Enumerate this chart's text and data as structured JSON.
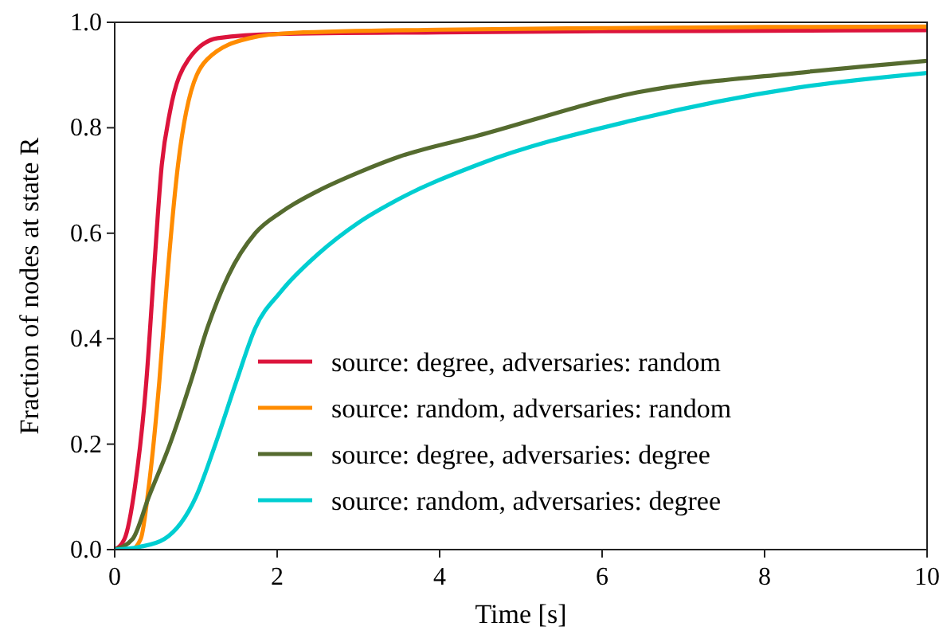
{
  "chart_data": {
    "type": "line",
    "xlabel": "Time [s]",
    "ylabel": "Fraction of nodes at state R",
    "xlim": [
      0,
      10
    ],
    "ylim": [
      0,
      1
    ],
    "xticks": [
      {
        "value": 0,
        "label": "0"
      },
      {
        "value": 2,
        "label": "2"
      },
      {
        "value": 4,
        "label": "4"
      },
      {
        "value": 6,
        "label": "6"
      },
      {
        "value": 8,
        "label": "8"
      },
      {
        "value": 10,
        "label": "10"
      }
    ],
    "yticks": [
      {
        "value": 0,
        "label": "0.0"
      },
      {
        "value": 0.2,
        "label": "0.2"
      },
      {
        "value": 0.4,
        "label": "0.4"
      },
      {
        "value": 0.6,
        "label": "0.6"
      },
      {
        "value": 0.8,
        "label": "0.8"
      },
      {
        "value": 1,
        "label": "1.0"
      }
    ],
    "grid": false,
    "legend": "bottom right",
    "marker": "none",
    "line_style": "solid",
    "series": [
      {
        "name": "source: degree, adversaries: random",
        "color": "#dc143c",
        "x": [
          0,
          0.12,
          0.25,
          0.39,
          0.48,
          0.58,
          0.68,
          0.91,
          1.27,
          2,
          4,
          6,
          8,
          10
        ],
        "values": [
          0,
          0.02,
          0.12,
          0.32,
          0.52,
          0.73,
          0.83,
          0.93,
          0.97,
          0.978,
          0.981,
          0.983,
          0.984,
          0.985
        ]
      },
      {
        "name": "source: random, adversaries: random",
        "color": "#ff8c00",
        "x": [
          0,
          0.2,
          0.32,
          0.42,
          0.55,
          0.65,
          0.78,
          0.88,
          1.14,
          1.66,
          2.2,
          4,
          6,
          8,
          10
        ],
        "values": [
          0,
          0,
          0.02,
          0.12,
          0.32,
          0.52,
          0.73,
          0.83,
          0.93,
          0.97,
          0.98,
          0.986,
          0.989,
          0.991,
          0.992
        ]
      },
      {
        "name": "source: degree, adversaries: degree",
        "color": "#556b2f",
        "x": [
          0,
          0.22,
          0.42,
          0.68,
          0.94,
          1.14,
          1.4,
          1.73,
          2.05,
          2.5,
          3,
          3.5,
          4.47,
          6.43,
          8.4,
          10
        ],
        "values": [
          0,
          0.02,
          0.1,
          0.2,
          0.32,
          0.42,
          0.52,
          0.6,
          0.64,
          0.68,
          0.715,
          0.745,
          0.785,
          0.867,
          0.904,
          0.927
        ]
      },
      {
        "name": "source: random, adversaries: degree",
        "color": "#00ced1",
        "x": [
          0,
          0.3,
          0.61,
          1,
          1.24,
          1.5,
          1.73,
          2.05,
          2.5,
          3,
          3.5,
          4.47,
          6.43,
          8.4,
          10
        ],
        "values": [
          0,
          0.005,
          0.02,
          0.1,
          0.2,
          0.32,
          0.42,
          0.49,
          0.56,
          0.62,
          0.665,
          0.73,
          0.816,
          0.876,
          0.904
        ]
      }
    ]
  }
}
